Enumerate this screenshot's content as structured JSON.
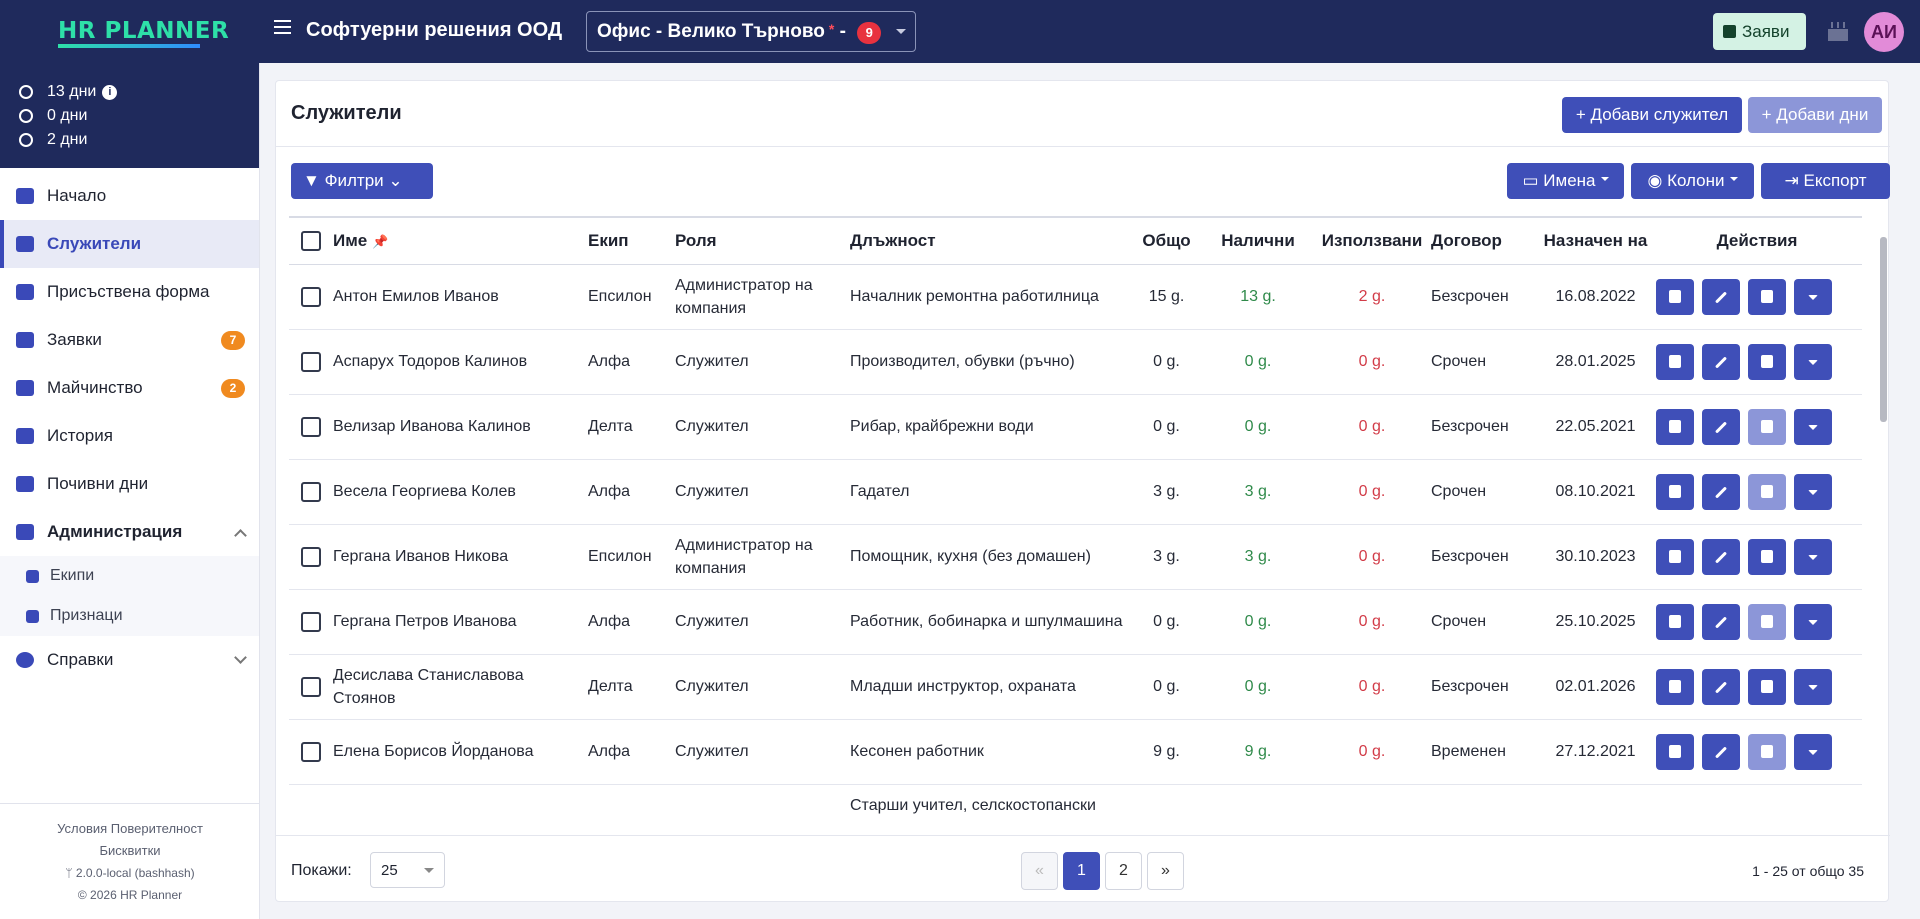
{
  "topbar": {
    "logo": "HR PLANNER",
    "company": "Софтуерни решения ООД",
    "office": "Офис - Велико Търново",
    "office_star": "*",
    "office_dash": "-",
    "office_badge": "9",
    "requests_button": "Заяви",
    "avatar": "АИ"
  },
  "sidebar": {
    "days": [
      {
        "value": "13 дни"
      },
      {
        "value": "0 дни"
      },
      {
        "value": "2 дни"
      }
    ],
    "items": [
      {
        "label": "Начало"
      },
      {
        "label": "Служители"
      },
      {
        "label": "Присъствена форма"
      },
      {
        "label": "Заявки",
        "badge": "7"
      },
      {
        "label": "Майчинство",
        "badge": "2"
      },
      {
        "label": "История"
      },
      {
        "label": "Почивни дни"
      },
      {
        "label": "Администрация"
      }
    ],
    "admin_sub": [
      {
        "label": "Екипи"
      },
      {
        "label": "Признаци"
      }
    ],
    "reports": "Справки",
    "footer": {
      "terms": "Условия",
      "privacy": "Поверителност",
      "cookies": "Бисквитки",
      "version": "2.0.0-local (bashhash)",
      "copyright": "© 2026  HR Planner"
    }
  },
  "main": {
    "title": "Служители",
    "add_employee": "+ Добави служител",
    "add_days": "+ Добави дни",
    "filters": "Филтри",
    "names_btn": "Имена",
    "columns_btn": "Колони",
    "export_btn": "Експорт",
    "columns": [
      "Име",
      "Екип",
      "Роля",
      "Длъжност",
      "Общо",
      "Налични",
      "Използвани",
      "Договор",
      "Назначен на",
      "Действия"
    ],
    "rows": [
      {
        "name": "Антон Емилов Иванов",
        "team": "Епсилон",
        "role": "Администратор на компания",
        "position": "Началник ремонтна работилница",
        "total": "15 g.",
        "available": "13 g.",
        "used": "2 g.",
        "contract": "Безсрочен",
        "assigned": "16.08.2022"
      },
      {
        "name": "Аспарух Тодоров Калинов",
        "team": "Алфа",
        "role": "Служител",
        "position": "Производител, обувки (ръчно)",
        "total": "0 g.",
        "available": "0 g.",
        "used": "0 g.",
        "contract": "Срочен",
        "assigned": "28.01.2025"
      },
      {
        "name": "Велизар Иванова Калинов",
        "team": "Делта",
        "role": "Служител",
        "position": "Рибар, крайбрежни води",
        "total": "0 g.",
        "available": "0 g.",
        "used": "0 g.",
        "contract": "Безсрочен",
        "assigned": "22.05.2021"
      },
      {
        "name": "Весела Георгиева Колев",
        "team": "Алфа",
        "role": "Служител",
        "position": "Гадател",
        "total": "3 g.",
        "available": "3 g.",
        "used": "0 g.",
        "contract": "Срочен",
        "assigned": "08.10.2021"
      },
      {
        "name": "Гергана Иванов Никова",
        "team": "Епсилон",
        "role": "Администратор на компания",
        "position": "Помощник, кухня (без домашен)",
        "total": "3 g.",
        "available": "3 g.",
        "used": "0 g.",
        "contract": "Безсрочен",
        "assigned": "30.10.2023"
      },
      {
        "name": "Гергана Петров Иванова",
        "team": "Алфа",
        "role": "Служител",
        "position": "Работник, бобинарка и шпулмашина",
        "total": "0 g.",
        "available": "0 g.",
        "used": "0 g.",
        "contract": "Срочен",
        "assigned": "25.10.2025"
      },
      {
        "name": "Десислава Станиславова Стоянов",
        "team": "Делта",
        "role": "Служител",
        "position": "Младши инструктор, охраната",
        "total": "0 g.",
        "available": "0 g.",
        "used": "0 g.",
        "contract": "Безсрочен",
        "assigned": "02.01.2026"
      },
      {
        "name": "Елена Борисов Йорданова",
        "team": "Алфа",
        "role": "Служител",
        "position": "Кесонен работник",
        "total": "9 g.",
        "available": "9 g.",
        "used": "0 g.",
        "contract": "Временен",
        "assigned": "27.12.2021"
      },
      {
        "name": "",
        "team": "",
        "role": "",
        "position": "Старши учител, селскостопански учебни",
        "total": "",
        "available": "",
        "used": "",
        "contract": "",
        "assigned": ""
      }
    ],
    "doc_enabled": [
      true,
      true,
      false,
      false,
      true,
      false,
      true,
      false,
      false
    ]
  },
  "footer": {
    "show_label": "Покажи:",
    "page_size": "25",
    "prev": "«",
    "pages": [
      "1",
      "2"
    ],
    "next": "»",
    "range": "1 - 25 от общо 35"
  }
}
